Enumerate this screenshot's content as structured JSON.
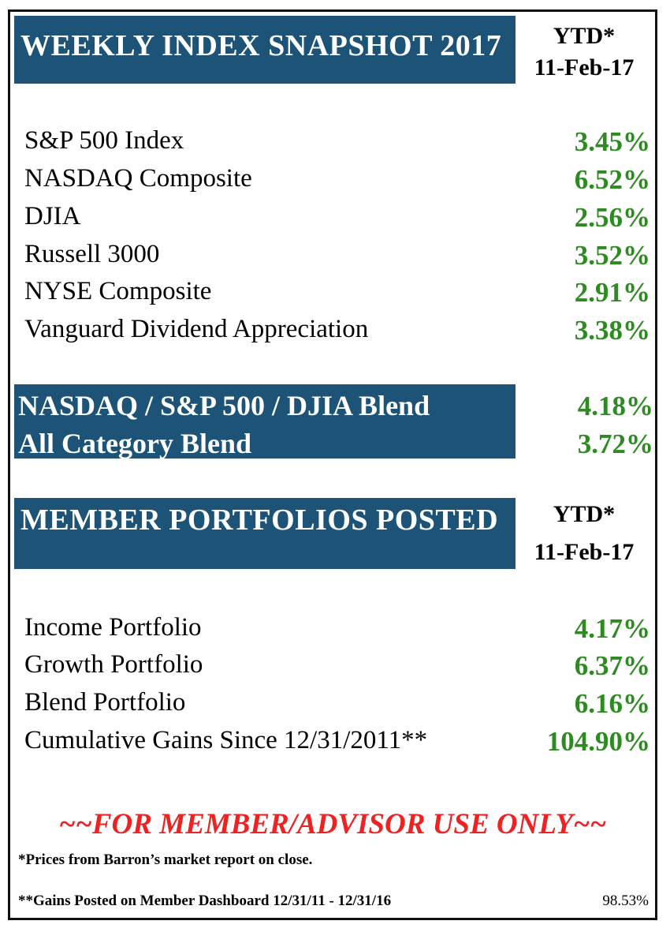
{
  "header": {
    "title": "WEEKLY INDEX SNAPSHOT 2017",
    "ytd_label": "YTD*",
    "date": "11-Feb-17"
  },
  "indices": [
    {
      "name": "S&P 500 Index",
      "value": "3.45%"
    },
    {
      "name": "NASDAQ Composite",
      "value": "6.52%"
    },
    {
      "name": "DJIA",
      "value": "2.56%"
    },
    {
      "name": "Russell 3000",
      "value": "3.52%"
    },
    {
      "name": "NYSE Composite",
      "value": "2.91%"
    },
    {
      "name": "Vanguard Dividend Appreciation",
      "value": "3.38%"
    }
  ],
  "blends": [
    {
      "name": "NASDAQ / S&P 500 / DJIA Blend",
      "value": "4.18%"
    },
    {
      "name": "All Category Blend",
      "value": "3.72%"
    }
  ],
  "portfolios_header": {
    "title": "MEMBER PORTFOLIOS POSTED",
    "ytd_label": "YTD*",
    "date": "11-Feb-17"
  },
  "portfolios": [
    {
      "name": "Income Portfolio",
      "value": "4.17%"
    },
    {
      "name": "Growth Portfolio",
      "value": "6.37%"
    },
    {
      "name": "Blend Portfolio",
      "value": "6.16%"
    },
    {
      "name": "Cumulative Gains Since 12/31/2011**",
      "value": "104.90%"
    }
  ],
  "notice": "~~FOR MEMBER/ADVISOR USE ONLY~~",
  "footnotes": {
    "prices": "*Prices from Barron’s market report on close.",
    "gains": "**Gains Posted on Member Dashboard 12/31/11 - 12/31/16",
    "gains_value": "98.53%"
  },
  "colors": {
    "header_bar": "#1d5377",
    "positive": "#2e8b22",
    "notice": "#ee2222"
  }
}
